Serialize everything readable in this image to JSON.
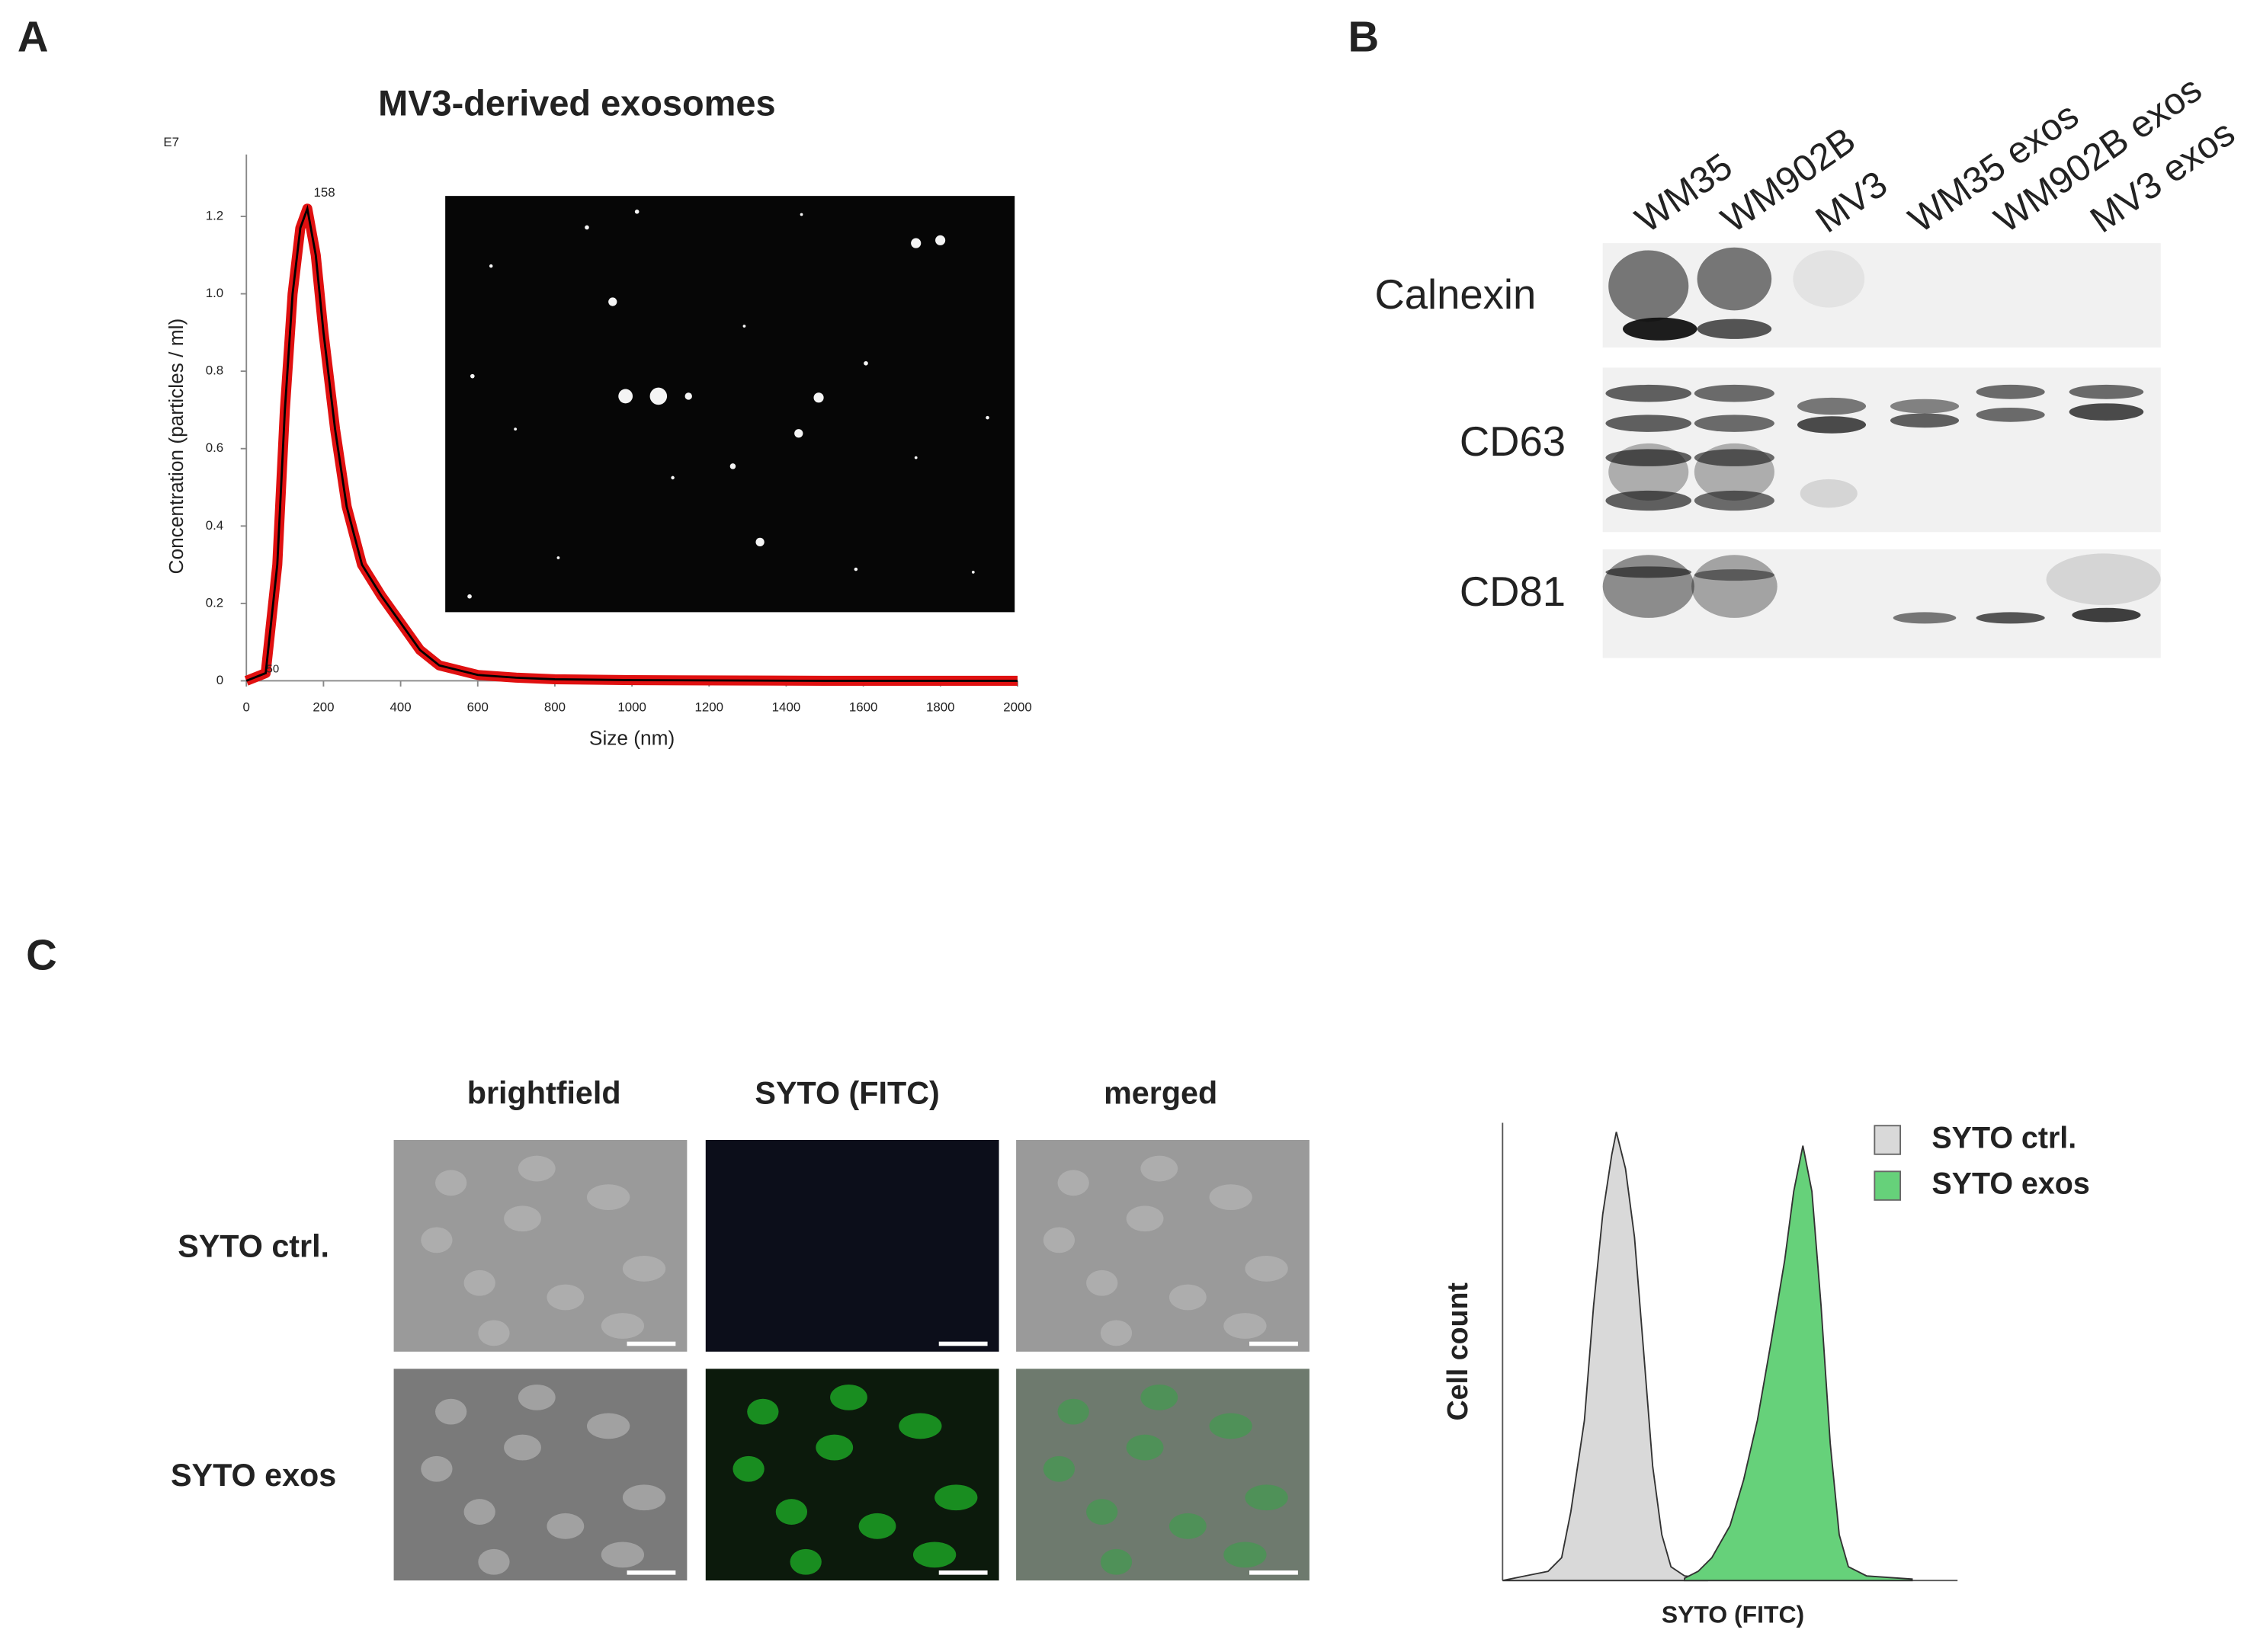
{
  "panel_labels": [
    "A",
    "B",
    "C"
  ],
  "chart_data": [
    {
      "type": "line",
      "title": "MV3-derived exosomes",
      "xlabel": "Size (nm)",
      "ylabel": "Concentration (particles / ml)",
      "y_multiplier": "E7",
      "annotations": [
        "158",
        "50"
      ],
      "x": [
        0,
        50,
        80,
        100,
        120,
        140,
        158,
        180,
        200,
        230,
        260,
        300,
        350,
        400,
        450,
        500,
        600,
        700,
        800,
        1000,
        1500,
        2000
      ],
      "values": [
        0,
        0.02,
        0.3,
        0.7,
        1.0,
        1.17,
        1.22,
        1.1,
        0.9,
        0.65,
        0.45,
        0.3,
        0.22,
        0.15,
        0.08,
        0.04,
        0.015,
        0.008,
        0.004,
        0.002,
        0,
        0
      ],
      "color": "#000000",
      "band_color": "#e01010",
      "xlim": [
        0,
        2000
      ],
      "ylim": [
        0,
        1.36
      ],
      "xticks": [
        0,
        200,
        400,
        600,
        800,
        1000,
        1200,
        1400,
        1600,
        1800,
        2000
      ],
      "yticks": [
        0,
        0.2,
        0.4,
        0.6,
        0.8,
        {
          "value": 1,
          "label": "1.0"
        },
        1.2
      ]
    },
    {
      "type": "area",
      "xlabel": "SYTO (FITC)",
      "ylabel": "Cell count",
      "legend": "top-right",
      "xlim": [
        0,
        100
      ],
      "ylim": [
        0,
        100
      ],
      "series": [
        {
          "name": "SYTO ctrl.",
          "color": "#d9d9d9",
          "x": [
            0,
            5,
            10,
            13,
            15,
            18,
            20,
            22,
            24,
            25,
            27,
            29,
            31,
            33,
            35,
            37,
            40,
            45
          ],
          "values": [
            0,
            1,
            2,
            5,
            15,
            35,
            60,
            80,
            93,
            98,
            90,
            75,
            50,
            25,
            10,
            3,
            1,
            0.5
          ]
        },
        {
          "name": "SYTO exos",
          "color": "#66d17a",
          "x": [
            40,
            43,
            46,
            50,
            53,
            56,
            59,
            62,
            64,
            66,
            68,
            70,
            72,
            74,
            76,
            80,
            90
          ],
          "values": [
            0.5,
            2,
            5,
            12,
            22,
            35,
            52,
            70,
            85,
            95,
            85,
            60,
            30,
            10,
            3,
            1,
            0.3
          ]
        }
      ]
    }
  ],
  "western_blot": {
    "lanes": [
      "WM35",
      "WM902B",
      "MV3",
      "WM35 exos",
      "WM902B exos",
      "MV3 exos"
    ],
    "proteins": [
      "Calnexin",
      "CD63",
      "CD81"
    ]
  },
  "microscopy": {
    "columns": [
      "brightfield",
      "SYTO (FITC)",
      "merged"
    ],
    "rows": [
      "SYTO ctrl.",
      "SYTO exos"
    ]
  }
}
